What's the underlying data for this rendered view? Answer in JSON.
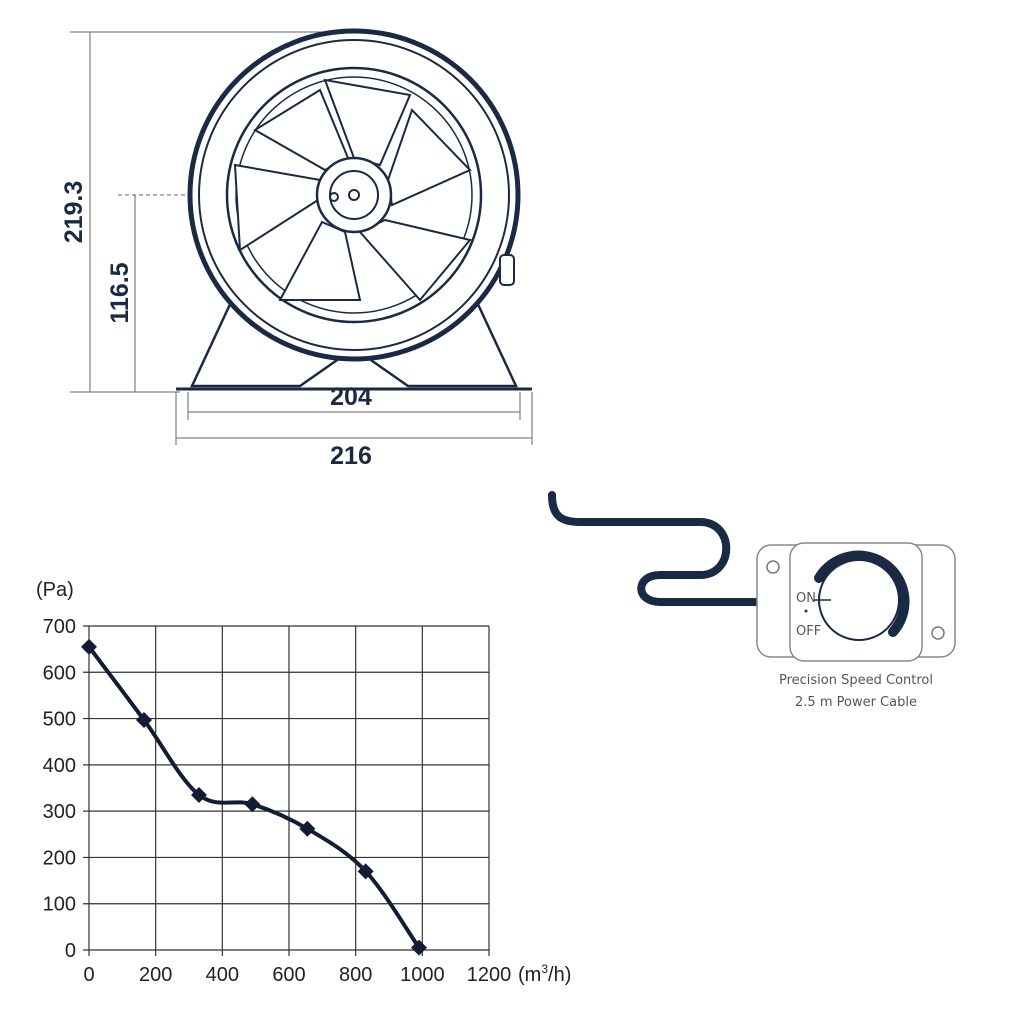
{
  "colors": {
    "ink": "#1b2a44",
    "grid": "#333333",
    "line": "#121c33"
  },
  "fan_drawing": {
    "dimensions": {
      "height_total": "219.3",
      "height_center": "116.5",
      "width_feet_inner": "204",
      "width_feet_outer": "216"
    }
  },
  "controller": {
    "on_label": "ON",
    "off_label": "OFF",
    "caption_line1": "Precision Speed Control",
    "caption_line2": "2.5 m Power Cable"
  },
  "chart_data": {
    "type": "line",
    "title": "",
    "ylabel": "(Pa)",
    "xlabel": "(m³/h)",
    "xlabel_base": "(m",
    "xlabel_sup": "3",
    "xlabel_tail": "/h)",
    "xlim": [
      0,
      1200
    ],
    "ylim": [
      0,
      700
    ],
    "xticks": [
      0,
      200,
      400,
      600,
      800,
      1000,
      1200
    ],
    "yticks": [
      0,
      100,
      200,
      300,
      400,
      500,
      600,
      700
    ],
    "grid": true,
    "marker": "diamond",
    "x": [
      0,
      165,
      330,
      490,
      655,
      830,
      990
    ],
    "y": [
      655,
      497,
      335,
      315,
      262,
      170,
      5
    ]
  }
}
